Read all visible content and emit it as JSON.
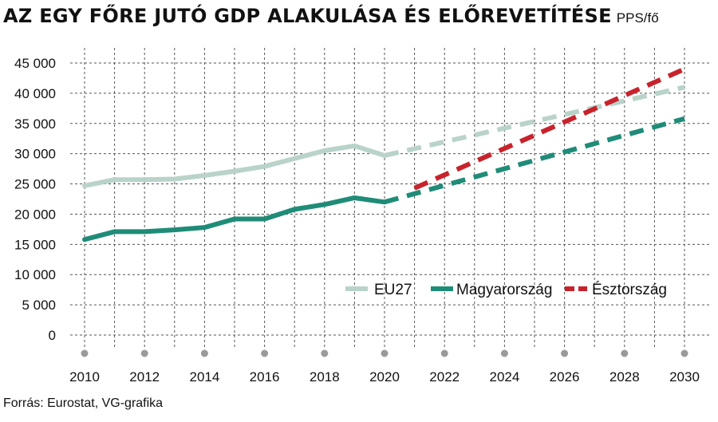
{
  "title": "AZ EGY FŐRE JUTÓ GDP ALAKULÁSA ÉS ELŐREVETÍTÉSE",
  "unit": "PPS/fő",
  "source": "Forrás: Eurostat, VG-grafika",
  "colors": {
    "EU27": "#b9d3c9",
    "Magyarország": "#1f8c78",
    "Észtország": "#c8232c",
    "grid": "#555555",
    "dot": "#9a9a9a"
  },
  "chart_data": {
    "type": "line",
    "title": "AZ EGY FŐRE JUTÓ GDP ALAKULÁSA ÉS ELŐREVETÍTÉSE",
    "ylabel": "PPS/fő",
    "xlabel": "",
    "ylim": [
      0,
      45000
    ],
    "xlim": [
      2010,
      2030
    ],
    "grid": true,
    "legend": "lower-right, inside plot",
    "x_ticks": [
      "2010",
      "2012",
      "2014",
      "2016",
      "2018",
      "2020",
      "2022",
      "2024",
      "2026",
      "2028",
      "2030"
    ],
    "y_ticks": [
      "0",
      "5 000",
      "10 000",
      "15 000",
      "20 000",
      "25 000",
      "30 000",
      "35 000",
      "40 000",
      "45 000"
    ],
    "series": [
      {
        "name": "EU27",
        "actual": {
          "x": [
            2010,
            2011,
            2012,
            2013,
            2014,
            2015,
            2016,
            2017,
            2018,
            2019,
            2020
          ],
          "y": [
            24700,
            25700,
            25700,
            25800,
            26400,
            27100,
            27900,
            29200,
            30500,
            31300,
            29700
          ]
        },
        "projection": {
          "x": [
            2020,
            2030
          ],
          "y": [
            29700,
            41000
          ]
        }
      },
      {
        "name": "Magyarország",
        "actual": {
          "x": [
            2010,
            2011,
            2012,
            2013,
            2014,
            2015,
            2016,
            2017,
            2018,
            2019,
            2020
          ],
          "y": [
            15800,
            17100,
            17100,
            17400,
            17800,
            19200,
            19200,
            20800,
            21600,
            22700,
            22000
          ]
        },
        "projection": {
          "x": [
            2020,
            2030
          ],
          "y": [
            22000,
            35800
          ]
        }
      },
      {
        "name": "Észtország",
        "projection": {
          "x": [
            2021,
            2030
          ],
          "y": [
            24300,
            44000
          ]
        }
      }
    ]
  }
}
